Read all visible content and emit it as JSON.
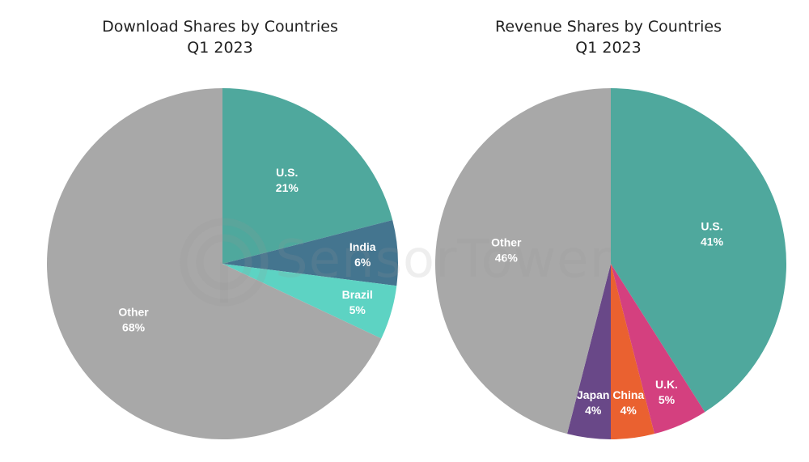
{
  "chart_data": [
    {
      "type": "pie",
      "title": "Download Shares by Countries",
      "subtitle": "Q1 2023",
      "slices": [
        {
          "label": "U.S.",
          "value": 21,
          "display": "21%",
          "color": "#4fa89d"
        },
        {
          "label": "India",
          "value": 6,
          "display": "6%",
          "color": "#44758f"
        },
        {
          "label": "Brazil",
          "value": 5,
          "display": "5%",
          "color": "#5dd3c3"
        },
        {
          "label": "Other",
          "value": 68,
          "display": "68%",
          "color": "#a8a8a8"
        }
      ]
    },
    {
      "type": "pie",
      "title": "Revenue Shares by Countries",
      "subtitle": "Q1 2023",
      "slices": [
        {
          "label": "U.S.",
          "value": 41,
          "display": "41%",
          "color": "#4fa89d"
        },
        {
          "label": "U.K.",
          "value": 5,
          "display": "5%",
          "color": "#d4407f"
        },
        {
          "label": "China",
          "value": 4,
          "display": "4%",
          "color": "#ea6130"
        },
        {
          "label": "Japan",
          "value": 4,
          "display": "4%",
          "color": "#694888"
        },
        {
          "label": "Other",
          "value": 46,
          "display": "46%",
          "color": "#a8a8a8"
        }
      ]
    }
  ],
  "watermark": {
    "text": "SensorTower"
  }
}
